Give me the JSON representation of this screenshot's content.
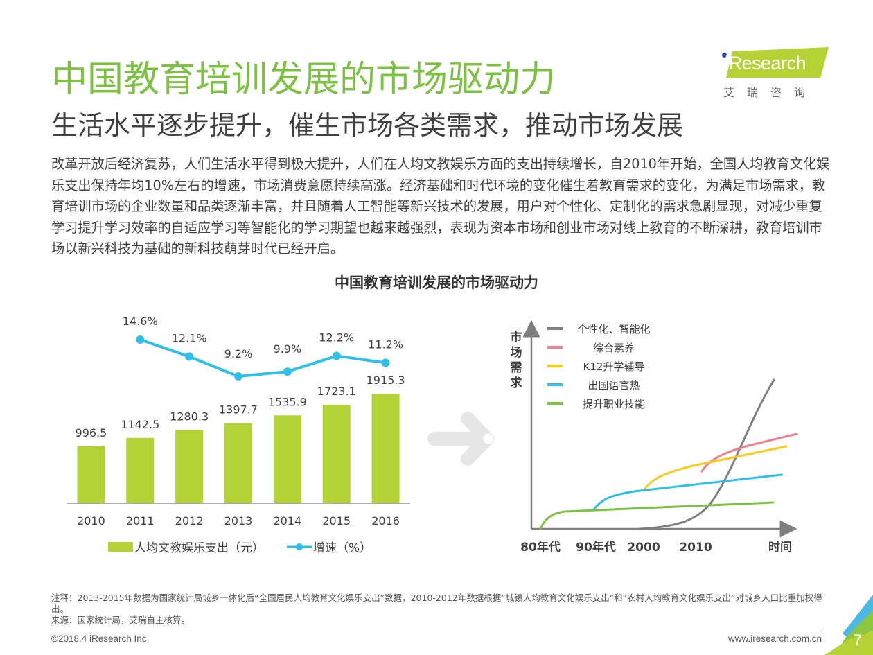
{
  "header": {
    "title": "中国教育培训发展的市场驱动力",
    "subtitle": "生活水平逐步提升，催生市场各类需求，推动市场发展"
  },
  "logo": {
    "brand": "iResearch",
    "cn": "艾瑞咨询",
    "colors": {
      "green": "#b5d334",
      "dot": "#1f4ea1"
    }
  },
  "body_text": "改革开放后经济复苏，人们生活水平得到极大提升，人们在人均文教娱乐方面的支出持续增长，自2010年开始，全国人均教育文化娱乐支出保持年均10%左右的增速，市场消费意愿持续高涨。经济基础和时代环境的变化催生着教育需求的变化，为满足市场需求，教育培训市场的企业数量和品类逐渐丰富，并且随着人工智能等新兴技术的发展，用户对个性化、定制化的需求急剧显现，对减少重复学习提升学习效率的自适应学习等智能化的学习期望也越来越强烈，表现为资本市场和创业市场对线上教育的不断深耕，教育培训市场以新兴科技为基础的新科技萌芽时代已经开启。",
  "chart_title": "中国教育培训发展的市场驱动力",
  "chart_data": [
    {
      "type": "bar",
      "title": "",
      "categories": [
        "2010",
        "2011",
        "2012",
        "2013",
        "2014",
        "2015",
        "2016"
      ],
      "series": [
        {
          "name": "人均文教娱乐支出（元）",
          "type": "bar",
          "color": "#b2d235",
          "values": [
            996.5,
            1142.5,
            1280.3,
            1397.7,
            1535.9,
            1723.1,
            1915.3
          ],
          "labels": [
            "996.5",
            "1142.5",
            "1280.3",
            "1397.7",
            "1535.9",
            "1723.1",
            "1915.3"
          ]
        },
        {
          "name": "增速（%）",
          "type": "line",
          "color": "#2ec0e8",
          "values": [
            null,
            14.6,
            12.1,
            9.2,
            9.9,
            12.2,
            11.2
          ],
          "labels": [
            "",
            "14.6%",
            "12.1%",
            "9.2%",
            "9.9%",
            "12.2%",
            "11.2%"
          ]
        }
      ],
      "legend": [
        "人均文教娱乐支出（元）",
        "增速（%）"
      ],
      "legend_position": "bottom",
      "grid": false,
      "xlabel": "",
      "ylabel": ""
    },
    {
      "type": "line",
      "title": "",
      "ylabel": "市场需求",
      "xlabel": "时间",
      "x_ticks": [
        "80年代",
        "90年代",
        "2000",
        "2010"
      ],
      "legend_position": "top-left",
      "grid": false,
      "series": [
        {
          "name": "个性化、智能化",
          "color": "#7f7f7f",
          "start": 2000,
          "trend": "exponential rise after 2010"
        },
        {
          "name": "综合素养",
          "color": "#ee7f8c",
          "start": 2010,
          "trend": "branch rising above K12 after 2010"
        },
        {
          "name": "K12升学辅导",
          "color": "#ffc91e",
          "start": 2000,
          "trend": "branch rising above language after 2000"
        },
        {
          "name": "出国语言热",
          "color": "#2ec0e8",
          "start": 1990,
          "trend": "branch rising above vocational after 90s"
        },
        {
          "name": "提升职业技能",
          "color": "#7dc142",
          "start": 1980,
          "trend": "rapid rise in 80s then slow growth"
        }
      ]
    }
  ],
  "notes": {
    "note": "注释：2013-2015年数据为国家统计局城乡一体化后“全国居民人均教育文化娱乐支出”数据，2010-2012年数据根据“城镇人均教育文化娱乐支出”和“农村人均教育文化娱乐支出”对城乡人口比重加权得出。",
    "source": "来源：国家统计局，艾瑞自主核算。"
  },
  "footer": {
    "copyright": "©2018.4 iResearch Inc",
    "url": "www.iresearch.com.cn",
    "page": "7"
  }
}
